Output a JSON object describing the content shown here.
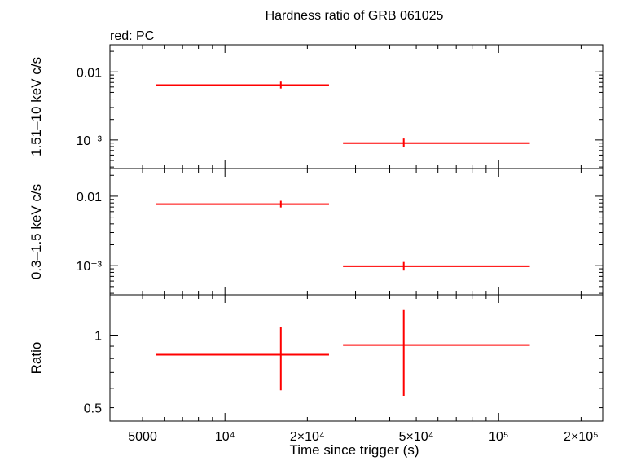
{
  "title": "Hardness ratio of GRB 061025",
  "subtitle": "red: PC",
  "xlabel": "Time since trigger (s)",
  "colors": {
    "series": "#ff0000",
    "axes": "#000000"
  },
  "chart_data": [
    {
      "type": "scatter",
      "panel": "top",
      "ylabel": "1.51–10 keV c/s",
      "xscale": "log",
      "yscale": "log",
      "xlim": [
        3800,
        240000
      ],
      "ylim": [
        0.00038,
        0.025
      ],
      "yticks": [
        {
          "value": 0.01,
          "label": "0.01"
        },
        {
          "value": 0.001,
          "label": "10⁻³"
        }
      ],
      "series": [
        {
          "values": [
            {
              "x": 16000,
              "xmin": 5600,
              "xmax": 24000,
              "y": 0.0064,
              "ymin": 0.0057,
              "ymax": 0.0072
            },
            {
              "x": 45000,
              "xmin": 27000,
              "xmax": 130000,
              "y": 0.0009,
              "ymin": 0.00078,
              "ymax": 0.00105
            }
          ]
        }
      ]
    },
    {
      "type": "scatter",
      "panel": "middle",
      "ylabel": "0.3–1.5 keV c/s",
      "xscale": "log",
      "yscale": "log",
      "xlim": [
        3800,
        240000
      ],
      "ylim": [
        0.00038,
        0.025
      ],
      "yticks": [
        {
          "value": 0.01,
          "label": "0.01"
        },
        {
          "value": 0.001,
          "label": "10⁻³"
        }
      ],
      "series": [
        {
          "values": [
            {
              "x": 16000,
              "xmin": 5600,
              "xmax": 24000,
              "y": 0.0077,
              "ymin": 0.0069,
              "ymax": 0.0086
            },
            {
              "x": 45000,
              "xmin": 27000,
              "xmax": 130000,
              "y": 0.00098,
              "ymin": 0.00085,
              "ymax": 0.00113
            }
          ]
        }
      ]
    },
    {
      "type": "scatter",
      "panel": "bottom",
      "ylabel": "Ratio",
      "xscale": "log",
      "yscale": "log",
      "xlim": [
        3800,
        240000
      ],
      "ylim": [
        0.44,
        1.47
      ],
      "yticks": [
        {
          "value": 1,
          "label": "1"
        },
        {
          "value": 0.5,
          "label": "0.5"
        }
      ],
      "xticks": [
        {
          "value": 5000,
          "label": "5000"
        },
        {
          "value": 10000,
          "label": "10⁴"
        },
        {
          "value": 20000,
          "label": "2×10⁴"
        },
        {
          "value": 50000,
          "label": "5×10⁴"
        },
        {
          "value": 100000,
          "label": "10⁵"
        },
        {
          "value": 200000,
          "label": "2×10⁵"
        }
      ],
      "series": [
        {
          "values": [
            {
              "x": 16000,
              "xmin": 5600,
              "xmax": 24000,
              "y": 0.83,
              "ymin": 0.59,
              "ymax": 1.08
            },
            {
              "x": 45000,
              "xmin": 27000,
              "xmax": 130000,
              "y": 0.91,
              "ymin": 0.56,
              "ymax": 1.28
            }
          ]
        }
      ]
    }
  ]
}
